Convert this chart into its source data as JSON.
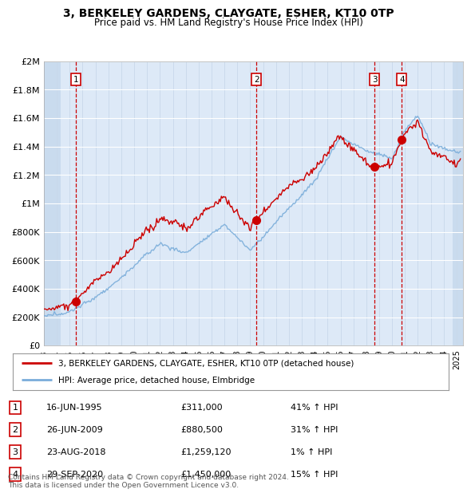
{
  "title": "3, BERKELEY GARDENS, CLAYGATE, ESHER, KT10 0TP",
  "subtitle": "Price paid vs. HM Land Registry's House Price Index (HPI)",
  "ylim": [
    0,
    2000000
  ],
  "yticks": [
    0,
    200000,
    400000,
    600000,
    800000,
    1000000,
    1200000,
    1400000,
    1600000,
    1800000,
    2000000
  ],
  "ytick_labels": [
    "£0",
    "£200K",
    "£400K",
    "£600K",
    "£800K",
    "£1M",
    "£1.2M",
    "£1.4M",
    "£1.6M",
    "£1.8M",
    "£2M"
  ],
  "xlim_start": 1993.0,
  "xlim_end": 2025.5,
  "background_color": "#dde9f7",
  "grid_color": "#c8d8ea",
  "sale_color": "#cc0000",
  "hpi_color": "#7aadda",
  "transactions": [
    {
      "num": 1,
      "date_dec": 1995.46,
      "price": 311000,
      "label": "16-JUN-1995",
      "price_str": "£311,000",
      "hpi_str": "41% ↑ HPI"
    },
    {
      "num": 2,
      "date_dec": 2009.48,
      "price": 880500,
      "label": "26-JUN-2009",
      "price_str": "£880,500",
      "hpi_str": "31% ↑ HPI"
    },
    {
      "num": 3,
      "date_dec": 2018.64,
      "price": 1259120,
      "label": "23-AUG-2018",
      "price_str": "£1,259,120",
      "hpi_str": "1% ↑ HPI"
    },
    {
      "num": 4,
      "date_dec": 2020.75,
      "price": 1450000,
      "label": "29-SEP-2020",
      "price_str": "£1,450,000",
      "hpi_str": "15% ↑ HPI"
    }
  ],
  "legend_line1": "3, BERKELEY GARDENS, CLAYGATE, ESHER, KT10 0TP (detached house)",
  "legend_line2": "HPI: Average price, detached house, Elmbridge",
  "footnote": "Contains HM Land Registry data © Crown copyright and database right 2024.\nThis data is licensed under the Open Government Licence v3.0.",
  "xtick_years": [
    1993,
    1994,
    1995,
    1996,
    1997,
    1998,
    1999,
    2000,
    2001,
    2002,
    2003,
    2004,
    2005,
    2006,
    2007,
    2008,
    2009,
    2010,
    2011,
    2012,
    2013,
    2014,
    2015,
    2016,
    2017,
    2018,
    2019,
    2020,
    2021,
    2022,
    2023,
    2024,
    2025
  ]
}
